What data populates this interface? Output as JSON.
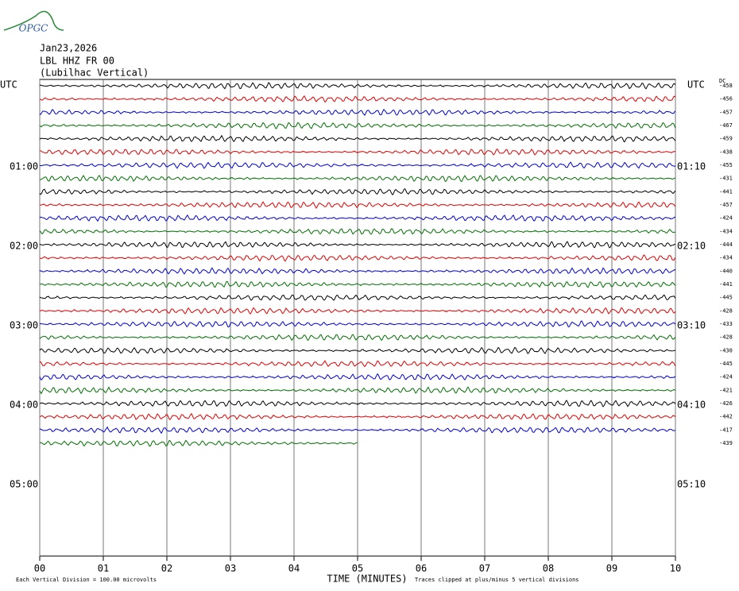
{
  "header": {
    "logo": "OPGC",
    "date": "Jan23,2026",
    "station": "LBL HHZ FR 00",
    "location": "(Lubilhac Vertical)"
  },
  "chart_data": {
    "type": "helicorder",
    "left_axis_label": "UTC",
    "right_axis_label": "UTC",
    "dc_label": "DC",
    "left_labels": [
      null,
      null,
      null,
      null,
      null,
      null,
      "01:00",
      null,
      null,
      null,
      null,
      null,
      "02:00",
      null,
      null,
      null,
      null,
      null,
      "03:00",
      null,
      null,
      null,
      null,
      null,
      "04:00",
      null,
      null,
      null,
      null,
      null,
      "05:00",
      null,
      null,
      null,
      null,
      null
    ],
    "right_labels": [
      null,
      null,
      null,
      null,
      null,
      null,
      "01:10",
      null,
      null,
      null,
      null,
      null,
      "02:10",
      null,
      null,
      null,
      null,
      null,
      "03:10",
      null,
      null,
      null,
      null,
      null,
      "04:10",
      null,
      null,
      null,
      null,
      null,
      "05:10",
      null,
      null,
      null,
      null,
      null
    ],
    "dc_values": [
      -458,
      -456,
      -457,
      -467,
      -459,
      -438,
      -455,
      -431,
      -441,
      -457,
      -424,
      -434,
      -444,
      -434,
      -440,
      -441,
      -445,
      -428,
      -433,
      -428,
      -430,
      -445,
      -424,
      -421,
      -426,
      -442,
      -417,
      -439
    ],
    "trace_colors": [
      "#000000",
      "#e00000",
      "#0000d0",
      "#007000"
    ],
    "xlim": [
      0,
      10
    ],
    "xticks": [
      {
        "value": 0,
        "label": "00"
      },
      {
        "value": 1,
        "label": "01"
      },
      {
        "value": 2,
        "label": "02"
      },
      {
        "value": 3,
        "label": "03"
      },
      {
        "value": 4,
        "label": "04"
      },
      {
        "value": 5,
        "label": "05"
      },
      {
        "value": 6,
        "label": "06"
      },
      {
        "value": 7,
        "label": "07"
      },
      {
        "value": 8,
        "label": "08"
      },
      {
        "value": 9,
        "label": "09"
      },
      {
        "value": 10,
        "label": "10"
      }
    ],
    "x_label": "TIME (MINUTES)",
    "footnote_left": "Each Vertical Division =  100.00 microvolts",
    "footnote_right": "Traces clipped at plus/minus 5 vertical divisions"
  }
}
